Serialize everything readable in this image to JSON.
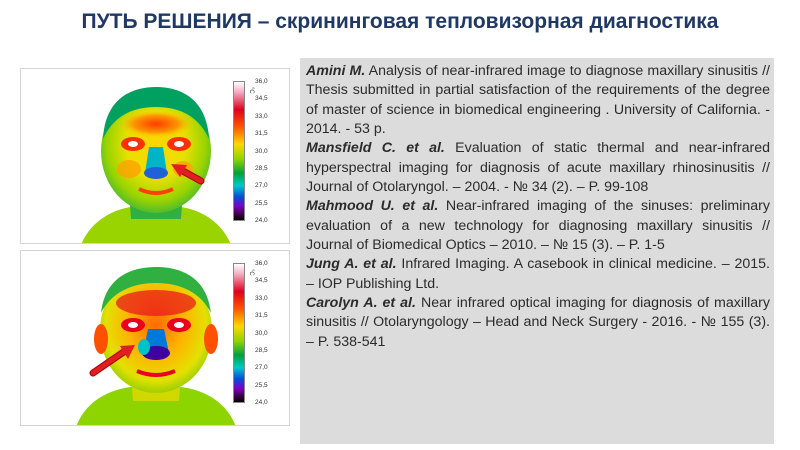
{
  "title": "ПУТЬ РЕШЕНИЯ – скрининговая тепловизорная диагностика",
  "thermograms": [
    {
      "scale_unit": "°C",
      "scale_labels": [
        "36,0",
        "34,5",
        "33,0",
        "31,5",
        "30,0",
        "28,5",
        "27,0",
        "25,5",
        "24,0"
      ],
      "arrow_side": "right"
    },
    {
      "scale_unit": "°C",
      "scale_labels": [
        "36,0",
        "34,5",
        "33,0",
        "31,5",
        "30,0",
        "28,5",
        "27,0",
        "25,5",
        "24,0"
      ],
      "arrow_side": "left"
    }
  ],
  "references": [
    {
      "author": "Amini M.",
      "text": " Analysis of near-infrared image to diagnose maxillary sinusitis // Thesis submitted in partial satisfaction of the requirements of the degree of master of science in biomedical engineering . University of California. - 2014.  - 53 p."
    },
    {
      "author": "Mansfield C. et al.",
      "text": " Evaluation of static thermal and near-infrared hyperspectral imaging for diagnosis of acute maxillary rhinosinusitis // Journal of Otolaryngol. – 2004. - № 34 (2). – P.  99-108"
    },
    {
      "author": "Mahmood U. et al.",
      "text": " Near-infrared imaging of the sinuses: preliminary evaluation of a new technology for diagnosing maxillary sinusitis  // Journal of Biomedical Optics – 2010. – № 15 (3). – P.  1-5"
    },
    {
      "author": "Jung A. et al.",
      "text": " Infrared Imaging. A casebook in clinical medicine. – 2015. – IOP Publishing Ltd."
    },
    {
      "author": "Carolyn A. et al.",
      "text": " Near infrared optical imaging for diagnosis of maxillary sinusitis // Otolaryngology – Head and Neck Surgery - 2016. -  № 155 (3). – P. 538-541"
    }
  ]
}
